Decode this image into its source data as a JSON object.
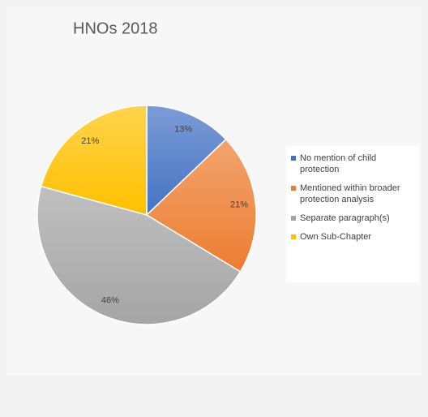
{
  "chart_data": {
    "type": "pie",
    "title": "HNOs 2018",
    "categories": [
      "No mention of child protection",
      "Mentioned within broader protection analysis",
      "Separate paragraph(s)",
      "Own Sub-Chapter"
    ],
    "values": [
      13,
      21,
      46,
      21
    ],
    "value_labels": [
      "13%",
      "21%",
      "46%",
      "21%"
    ],
    "colors": [
      "#4472c4",
      "#ed7d31",
      "#a5a5a5",
      "#ffc000"
    ],
    "legend": "right"
  }
}
